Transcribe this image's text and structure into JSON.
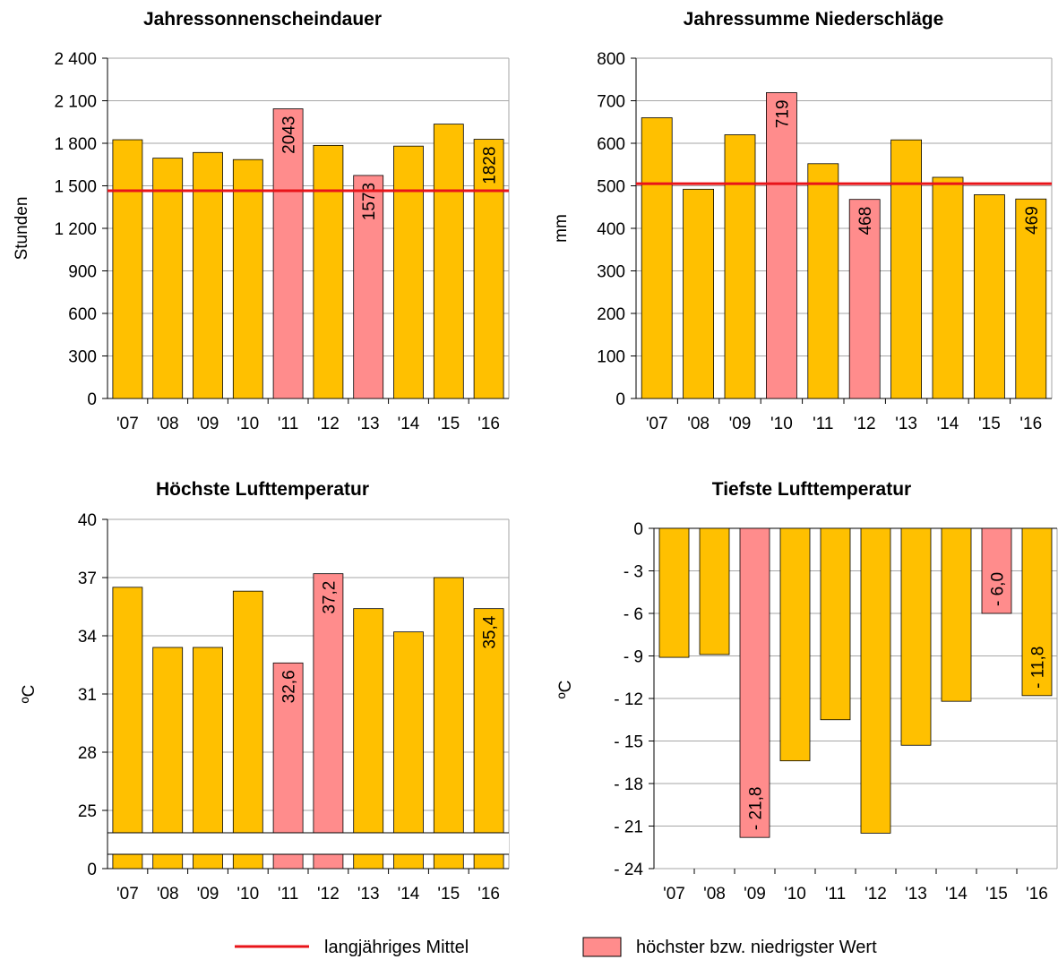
{
  "colors": {
    "bar": "#FFC000",
    "highlight": "#FF8C8C",
    "mean_line": "#E8141A",
    "grid": "#A6A6A6"
  },
  "legend": {
    "mean_label": "langjähriges Mittel",
    "extreme_label": "höchster bzw. niedrigster Wert"
  },
  "chart_data": [
    {
      "type": "bar",
      "title": "Jahressonnenscheindauer",
      "ylabel": "Stunden",
      "categories": [
        "'07",
        "'08",
        "'09",
        "'10",
        "'11",
        "'12",
        "'13",
        "'14",
        "'15",
        "'16"
      ],
      "values": [
        1825,
        1695,
        1735,
        1685,
        2043,
        1785,
        1573,
        1780,
        1935,
        1828
      ],
      "highlight": [
        4,
        6
      ],
      "value_labels": {
        "4": "2043",
        "6": "1573",
        "9": "1828"
      },
      "mean": 1465,
      "ylim": [
        0,
        2400
      ],
      "yticks": [
        0,
        300,
        600,
        900,
        1200,
        1500,
        1800,
        2100,
        2400
      ],
      "ytick_labels": [
        "0",
        "300",
        "600",
        "900",
        "1 200",
        "1 500",
        "1 800",
        "2 100",
        "2 400"
      ]
    },
    {
      "type": "bar",
      "title": "Jahressumme Niederschläge",
      "ylabel": "mm",
      "categories": [
        "'07",
        "'08",
        "'09",
        "'10",
        "'11",
        "'12",
        "'13",
        "'14",
        "'15",
        "'16"
      ],
      "values": [
        660,
        492,
        620,
        719,
        552,
        468,
        608,
        520,
        479,
        469
      ],
      "highlight": [
        3,
        5
      ],
      "value_labels": {
        "3": "719",
        "5": "468",
        "9": "469"
      },
      "mean": 505,
      "ylim": [
        0,
        800
      ],
      "yticks": [
        0,
        100,
        200,
        300,
        400,
        500,
        600,
        700,
        800
      ],
      "ytick_labels": [
        "0",
        "100",
        "200",
        "300",
        "400",
        "500",
        "600",
        "700",
        "800"
      ]
    },
    {
      "type": "bar",
      "title": "Höchste Lufttemperatur",
      "ylabel": "ºC",
      "categories": [
        "'07",
        "'08",
        "'09",
        "'10",
        "'11",
        "'12",
        "'13",
        "'14",
        "'15",
        "'16"
      ],
      "values": [
        36.5,
        33.4,
        33.4,
        36.3,
        32.6,
        37.2,
        35.4,
        34.2,
        37.0,
        35.4
      ],
      "highlight": [
        4,
        5
      ],
      "value_labels": {
        "4": "32,6",
        "5": "37,2",
        "9": "35,4"
      },
      "ylim": [
        0,
        40
      ],
      "axis_break": true,
      "yticks": [
        0,
        25,
        28,
        31,
        34,
        37,
        40
      ],
      "ytick_labels": [
        "0",
        "25",
        "28",
        "31",
        "34",
        "37",
        "40"
      ]
    },
    {
      "type": "bar",
      "title": "Tiefste Lufttemperatur",
      "ylabel": "ºC",
      "categories": [
        "'07",
        "'08",
        "'09",
        "'10",
        "'11",
        "'12",
        "'13",
        "'14",
        "'15",
        "'16"
      ],
      "values": [
        -9.1,
        -8.9,
        -21.8,
        -16.4,
        -13.5,
        -21.5,
        -15.3,
        -12.2,
        -6.0,
        -11.8
      ],
      "highlight": [
        2,
        8
      ],
      "value_labels": {
        "2": "- 21,8",
        "8": "- 6,0",
        "9": "- 11,8"
      },
      "ylim": [
        -24,
        0
      ],
      "yticks": [
        0,
        -3,
        -6,
        -9,
        -12,
        -15,
        -18,
        -21,
        -24
      ],
      "ytick_labels": [
        "0",
        "- 3",
        "- 6",
        "- 9",
        "- 12",
        "- 15",
        "- 18",
        "- 21",
        "- 24"
      ]
    }
  ]
}
